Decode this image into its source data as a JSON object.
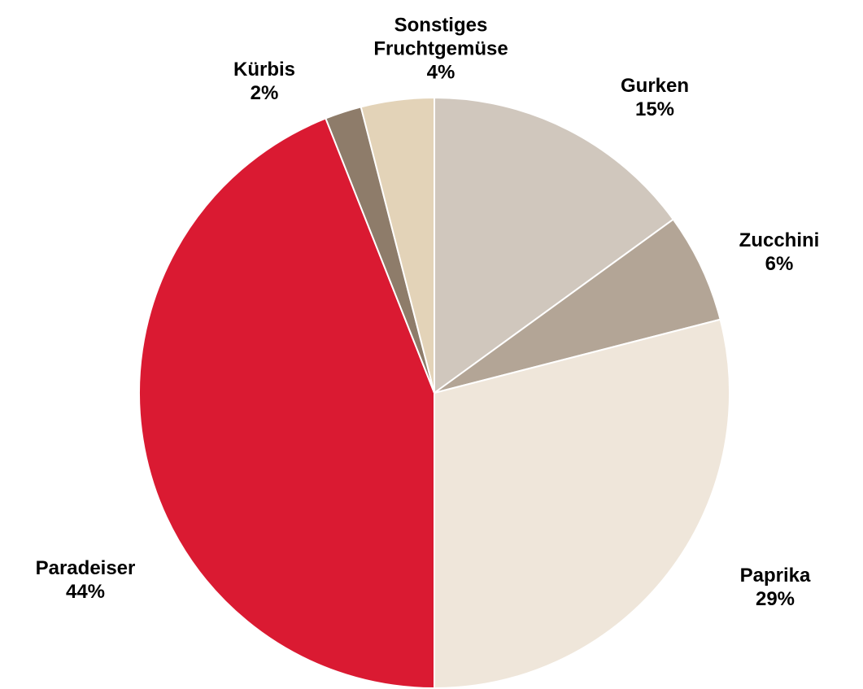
{
  "chart_data": {
    "type": "pie",
    "categories": [
      "Gurken",
      "Zucchini",
      "Paprika",
      "Paradeiser",
      "Kürbis",
      "Sonstiges Fruchtgemüse"
    ],
    "values": [
      15,
      6,
      29,
      44,
      2,
      4
    ],
    "value_labels": [
      "15%",
      "6%",
      "29%",
      "44%",
      "2%",
      "4%"
    ],
    "colors": [
      "#d0c7bd",
      "#b3a596",
      "#efe6da",
      "#da1a32",
      "#8e7c6a",
      "#e3d3b8"
    ]
  }
}
